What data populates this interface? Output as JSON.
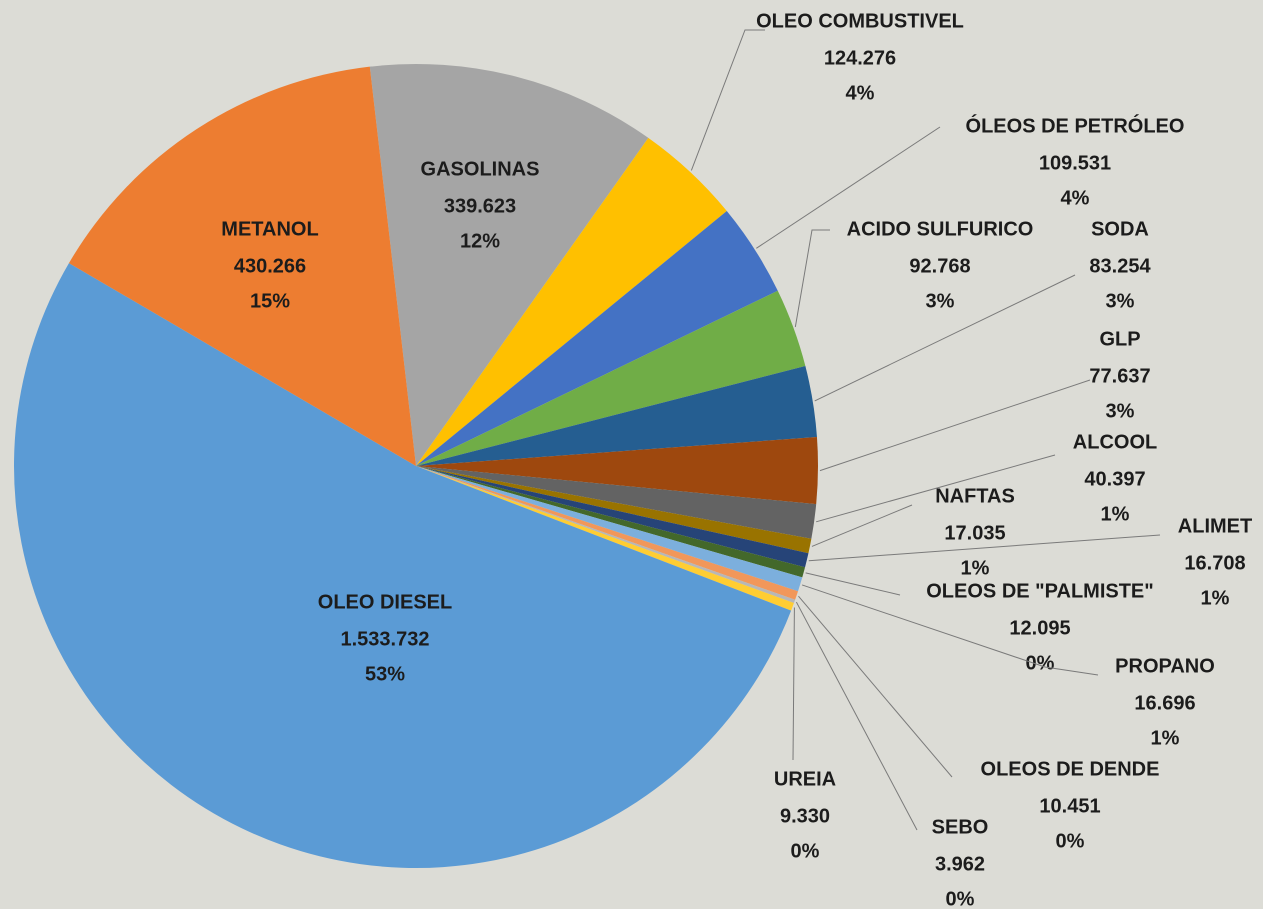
{
  "chart_data": {
    "type": "pie",
    "categories": [
      "GASOLINAS",
      "OLEO COMBUSTIVEL",
      "ÓLEOS DE PETRÓLEO",
      "ACIDO SULFURICO",
      "SODA",
      "GLP",
      "ALCOOL",
      "NAFTAS",
      "ALIMET",
      "OLEOS DE \"PALMISTE\"",
      "PROPANO",
      "OLEOS DE DENDE",
      "SEBO",
      "UREIA",
      "OLEO DIESEL",
      "METANOL"
    ],
    "values": [
      339623,
      124276,
      109531,
      92768,
      83254,
      77637,
      40397,
      17035,
      16708,
      12095,
      16696,
      10451,
      3962,
      9330,
      1533732,
      430266
    ],
    "value_labels": [
      "339.623",
      "124.276",
      "109.531",
      "92.768",
      "83.254",
      "77.637",
      "40.397",
      "17.035",
      "16.708",
      "12.095",
      "16.696",
      "10.451",
      "3.962",
      "9.330",
      "1.533.732",
      "430.266"
    ],
    "percent_labels": [
      "12%",
      "4%",
      "4%",
      "3%",
      "3%",
      "3%",
      "1%",
      "1%",
      "1%",
      "0%",
      "1%",
      "0%",
      "0%",
      "0%",
      "53%",
      "15%"
    ],
    "colors": [
      "#a5a5a5",
      "#ffc000",
      "#4472c4",
      "#70ad47",
      "#255e91",
      "#9e480e",
      "#636363",
      "#997300",
      "#264478",
      "#43682b",
      "#7cafdd",
      "#f1975a",
      "#b7b7b7",
      "#ffcd33",
      "#5b9bd5",
      "#ed7d31"
    ]
  }
}
